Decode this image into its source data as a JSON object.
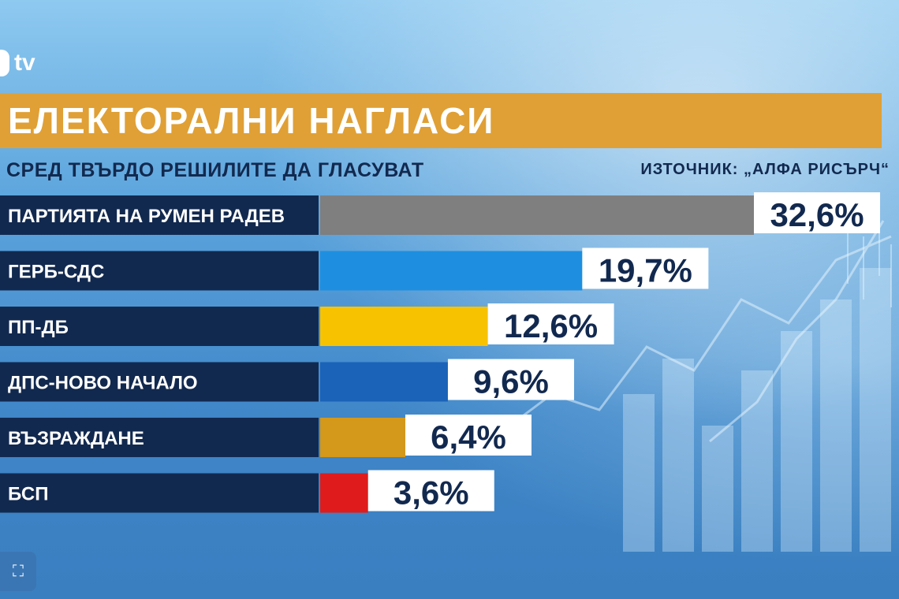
{
  "channel_logo": "tv",
  "title": "ЕЛЕКТОРАЛНИ НАГЛАСИ",
  "subtitle": "СРЕД ТВЪРДО РЕШИЛИТЕ ДА ГЛАСУВАТ",
  "source": "ИЗТОЧНИК: „АЛФА РИСЪРЧ“",
  "colors": {
    "title_bar": "#e0a035",
    "label_box": "#12294f",
    "value_box": "#ffffff",
    "value_text": "#12294f"
  },
  "chart_data": {
    "type": "bar",
    "orientation": "horizontal",
    "categories": [
      "ПАРТИЯТА НА РУМЕН РАДЕВ",
      "ГЕРБ-СДС",
      "ПП-ДБ",
      "ДПС-НОВО НАЧАЛО",
      "ВЪЗРАЖДАНЕ",
      "БСП"
    ],
    "values": [
      32.6,
      19.7,
      12.6,
      9.6,
      6.4,
      3.6
    ],
    "value_labels": [
      "32,6%",
      "19,7%",
      "12,6%",
      "9,6%",
      "6,4%",
      "3,6%"
    ],
    "bar_colors": [
      "#7f7f7f",
      "#1e8fe0",
      "#f7c200",
      "#1a63b8",
      "#d4981a",
      "#e01b1b"
    ],
    "title": "ЕЛЕКТОРАЛНИ НАГЛАСИ",
    "xlabel": "",
    "ylabel": ""
  },
  "fullscreen_icon": "fullscreen-icon"
}
